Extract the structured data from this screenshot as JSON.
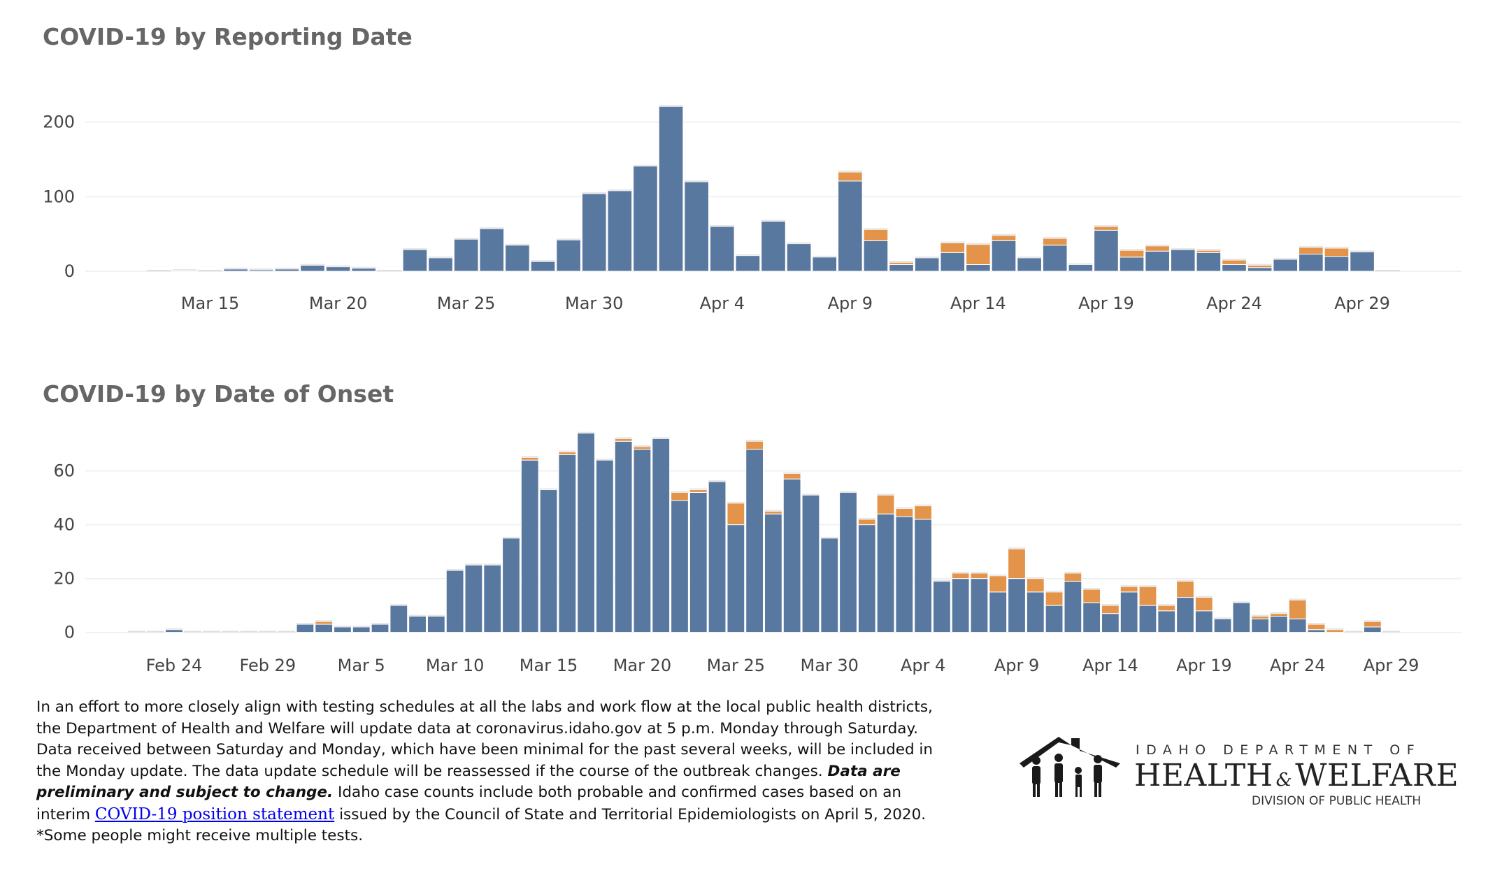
{
  "colors": {
    "confirmed": "#59789f",
    "probable": "#e4944a",
    "grid": "#eeeeee",
    "axis_text": "#444444"
  },
  "chart_data": [
    {
      "type": "bar",
      "stacked": true,
      "title": "COVID-19 by Reporting Date",
      "x_start": "2020-03-13",
      "x": [
        "Mar 13",
        "Mar 14",
        "Mar 15",
        "Mar 16",
        "Mar 17",
        "Mar 18",
        "Mar 19",
        "Mar 20",
        "Mar 21",
        "Mar 22",
        "Mar 23",
        "Mar 24",
        "Mar 25",
        "Mar 26",
        "Mar 27",
        "Mar 28",
        "Mar 29",
        "Mar 30",
        "Mar 31",
        "Apr 1",
        "Apr 2",
        "Apr 3",
        "Apr 4",
        "Apr 5",
        "Apr 6",
        "Apr 7",
        "Apr 8",
        "Apr 9",
        "Apr 10",
        "Apr 11",
        "Apr 12",
        "Apr 13",
        "Apr 14",
        "Apr 15",
        "Apr 16",
        "Apr 17",
        "Apr 18",
        "Apr 19",
        "Apr 20",
        "Apr 21",
        "Apr 22",
        "Apr 23",
        "Apr 24",
        "Apr 25",
        "Apr 26",
        "Apr 27",
        "Apr 28",
        "Apr 29",
        "Apr 30"
      ],
      "series": [
        {
          "key": "confirmed",
          "values": [
            0,
            1,
            0,
            3,
            2,
            3,
            8,
            6,
            4,
            0,
            29,
            18,
            43,
            57,
            35,
            13,
            42,
            104,
            108,
            141,
            221,
            120,
            60,
            21,
            67,
            37,
            19,
            121,
            41,
            9,
            18,
            25,
            9,
            41,
            18,
            35,
            9,
            55,
            19,
            27,
            29,
            25,
            9,
            5,
            16,
            23,
            20,
            26,
            0
          ]
        },
        {
          "key": "probable",
          "values": [
            0,
            0,
            0,
            0,
            0,
            0,
            0,
            0,
            0,
            0,
            0,
            0,
            0,
            0,
            0,
            0,
            0,
            0,
            0,
            0,
            0,
            0,
            0,
            0,
            0,
            0,
            0,
            12,
            15,
            3,
            0,
            13,
            27,
            7,
            0,
            9,
            0,
            5,
            9,
            7,
            0,
            3,
            6,
            3,
            0,
            9,
            11,
            0,
            0
          ]
        }
      ],
      "xticks": [
        "Mar 15",
        "Mar 20",
        "Mar 25",
        "Mar 30",
        "Apr 4",
        "Apr 9",
        "Apr 14",
        "Apr 19",
        "Apr 24",
        "Apr 29"
      ],
      "xticks_index": [
        2,
        7,
        12,
        17,
        22,
        27,
        32,
        37,
        42,
        47
      ],
      "yticks": [
        0,
        100,
        200
      ],
      "ylim": [
        -14,
        225
      ]
    },
    {
      "type": "bar",
      "stacked": true,
      "title": "COVID-19 by Date of Onset",
      "x_start": "2020-02-22",
      "x": [
        "Feb 22",
        "Feb 23",
        "Feb 24",
        "Feb 25",
        "Feb 26",
        "Feb 27",
        "Feb 28",
        "Feb 29",
        "Mar 1",
        "Mar 2",
        "Mar 3",
        "Mar 4",
        "Mar 5",
        "Mar 6",
        "Mar 7",
        "Mar 8",
        "Mar 9",
        "Mar 10",
        "Mar 11",
        "Mar 12",
        "Mar 13",
        "Mar 14",
        "Mar 15",
        "Mar 16",
        "Mar 17",
        "Mar 18",
        "Mar 19",
        "Mar 20",
        "Mar 21",
        "Mar 22",
        "Mar 23",
        "Mar 24",
        "Mar 25",
        "Mar 26",
        "Mar 27",
        "Mar 28",
        "Mar 29",
        "Mar 30",
        "Mar 31",
        "Apr 1",
        "Apr 2",
        "Apr 3",
        "Apr 4",
        "Apr 5",
        "Apr 6",
        "Apr 7",
        "Apr 8",
        "Apr 9",
        "Apr 10",
        "Apr 11",
        "Apr 12",
        "Apr 13",
        "Apr 14",
        "Apr 15",
        "Apr 16",
        "Apr 17",
        "Apr 18",
        "Apr 19",
        "Apr 20",
        "Apr 21",
        "Apr 22",
        "Apr 23",
        "Apr 24",
        "Apr 25",
        "Apr 26",
        "Apr 27",
        "Apr 28",
        "Apr 29"
      ],
      "series": [
        {
          "key": "confirmed",
          "values": [
            0,
            0,
            1,
            0,
            0,
            0,
            0,
            0,
            0,
            3,
            3,
            2,
            2,
            3,
            10,
            6,
            6,
            23,
            25,
            25,
            35,
            64,
            53,
            66,
            74,
            64,
            71,
            68,
            72,
            49,
            52,
            56,
            40,
            68,
            44,
            57,
            51,
            35,
            52,
            40,
            44,
            43,
            42,
            19,
            20,
            20,
            15,
            20,
            15,
            10,
            19,
            11,
            7,
            15,
            10,
            8,
            13,
            8,
            5,
            11,
            5,
            6,
            5,
            1,
            0,
            0,
            2,
            0
          ]
        },
        {
          "key": "probable",
          "values": [
            0,
            0,
            0,
            0,
            0,
            0,
            0,
            0,
            0,
            0,
            1,
            0,
            0,
            0,
            0,
            0,
            0,
            0,
            0,
            0,
            0,
            1,
            0,
            1,
            0,
            0,
            1,
            1,
            0,
            3,
            1,
            0,
            8,
            3,
            1,
            2,
            0,
            0,
            0,
            2,
            7,
            3,
            5,
            0,
            2,
            2,
            6,
            11,
            5,
            5,
            3,
            5,
            3,
            2,
            7,
            2,
            6,
            5,
            0,
            0,
            1,
            1,
            7,
            2,
            1,
            0,
            2,
            0
          ]
        }
      ],
      "xticks": [
        "Feb 24",
        "Feb 29",
        "Mar 5",
        "Mar 10",
        "Mar 15",
        "Mar 20",
        "Mar 25",
        "Mar 30",
        "Apr 4",
        "Apr 9",
        "Apr 14",
        "Apr 19",
        "Apr 24",
        "Apr 29"
      ],
      "xticks_index": [
        2,
        7,
        12,
        17,
        22,
        27,
        32,
        37,
        42,
        47,
        52,
        57,
        62,
        67
      ],
      "yticks": [
        0,
        20,
        40,
        60
      ],
      "ylim": [
        -4,
        76
      ]
    }
  ],
  "footer": {
    "p1": "In an effort to more closely align with testing schedules at all the labs and work flow at the local public health districts,",
    "p2": "the Department of Health and Welfare will update data at coronavirus.idaho.gov at 5 p.m. Monday through Saturday.",
    "p3": "Data received between Saturday and Monday, which have been minimal for the past several weeks, will be included in",
    "p4a": "the Monday update. The data update schedule will be reassessed if the course of the outbreak changes.",
    "p4b": "Data are",
    "p5a": "preliminary and subject to change.",
    "p5b": "Idaho case counts include both probable and confirmed cases based on an",
    "p6a": "interim",
    "link": "COVID-19 position statement",
    "p6b": "issued by the Council of State and Territorial Epidemiologists on April 5, 2020.",
    "note": "*Some people might receive multiple tests."
  },
  "logo": {
    "top": "IDAHO DEPARTMENT OF",
    "health": "HEALTH",
    "amp": "&",
    "welfare": "WELFARE",
    "division": "DIVISION OF PUBLIC HEALTH"
  }
}
